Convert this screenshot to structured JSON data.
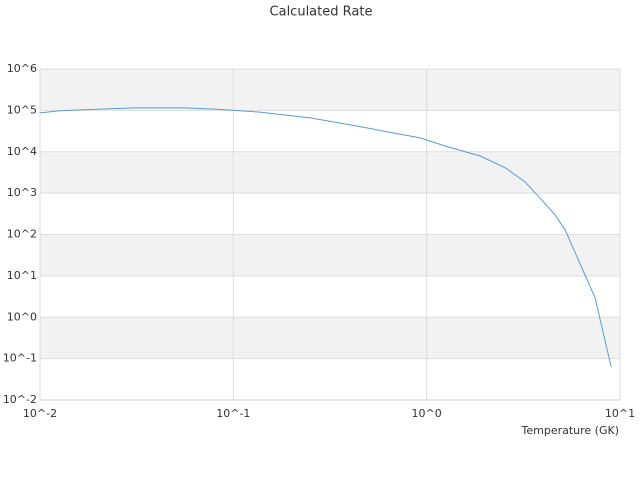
{
  "chart_data": {
    "type": "line",
    "title": "Calculated Rate",
    "x_label": "Temperature (GK)",
    "log_x": true,
    "log_y": true,
    "grid": true,
    "bands": true,
    "xlim": [
      0.01,
      10
    ],
    "ylim": [
      0.01,
      1000000
    ],
    "xticks": [
      {
        "value": 0.01,
        "label": "10^-2"
      },
      {
        "value": 0.1,
        "label": "10^-1"
      },
      {
        "value": 1,
        "label": "10^0"
      },
      {
        "value": 10,
        "label": "10^1"
      }
    ],
    "yticks": [
      {
        "value": 0.01,
        "label": "10^-2"
      },
      {
        "value": 0.1,
        "label": "10^-1"
      },
      {
        "value": 1,
        "label": "10^0"
      },
      {
        "value": 10,
        "label": "10^1"
      },
      {
        "value": 100,
        "label": "10^2"
      },
      {
        "value": 1000,
        "label": "10^3"
      },
      {
        "value": 10000,
        "label": "10^4"
      },
      {
        "value": 100000,
        "label": "10^5"
      },
      {
        "value": 1000000,
        "label": "10^6"
      }
    ],
    "series": [
      {
        "color": "#5b9bd5",
        "x": [
          0.01,
          0.0127,
          0.0204,
          0.031,
          0.0563,
          0.08,
          0.137,
          0.25,
          0.4,
          0.925,
          1.245,
          1.89,
          2.55,
          3.23,
          3.86,
          4.62,
          5.2,
          6.22,
          7.43,
          9.0
        ],
        "values": [
          87000,
          98000,
          107000,
          115000,
          115000,
          107000,
          91000,
          66000,
          45000,
          21600,
          13800,
          7900,
          4100,
          1860,
          760,
          295,
          129,
          19.5,
          2.95,
          0.063
        ]
      }
    ]
  }
}
